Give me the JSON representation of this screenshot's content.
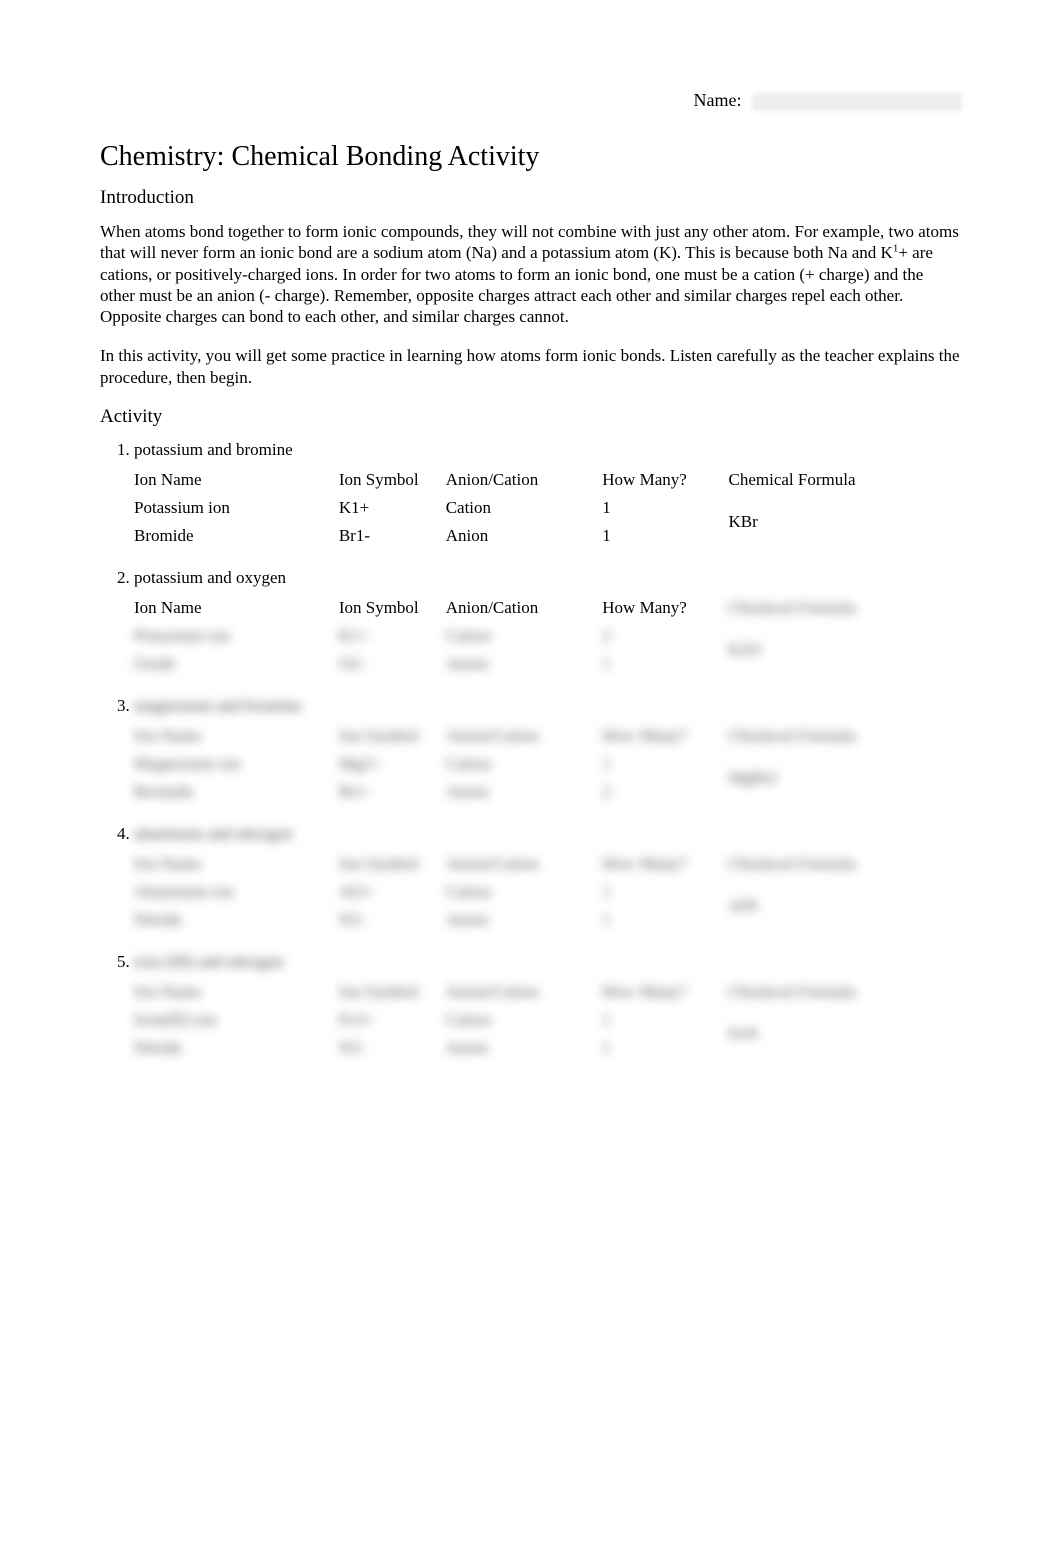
{
  "page": {
    "name_label": "Name:",
    "title": "Chemistry: Chemical Bonding Activity",
    "intro_heading": "Introduction",
    "intro_p1_a": "When atoms bond together to form ionic compounds, they will not combine with just any other atom. For example, two atoms that will never form an ionic bond are a sodium atom (Na) and a potassium atom (K). This is because both Na and K",
    "intro_p1_sup": "1",
    "intro_p1_b": "+ are cations, or positively-charged ions. In order for two atoms to form an ionic bond, one must be a cation (+ charge) and the other must be an anion (- charge). Remember, opposite charges attract each other and similar charges repel each other. Opposite charges can bond to each other, and similar charges cannot.",
    "intro_p2": "In this activity, you will get some practice in learning how atoms form ionic bonds. Listen carefully as the teacher explains the procedure, then begin.",
    "activity_heading": "Activity"
  },
  "headers": {
    "ion_name": "Ion Name",
    "ion_symbol": "Ion Symbol",
    "anion_cation": "Anion/Cation",
    "how_many": "How Many?",
    "chemical_formula": "Chemical Formula"
  },
  "items": [
    {
      "title": "potassium and bromine",
      "title_blurred": false,
      "header_how_many": "How Many?",
      "rows": [
        {
          "name": "Potassium ion",
          "symbol": "K1+",
          "ac": "Cation",
          "hm": "1",
          "blurred": false
        },
        {
          "name": "Bromide",
          "symbol": "Br1-",
          "ac": "Anion",
          "hm": "1",
          "blurred": false
        }
      ],
      "formula": "KBr",
      "formula_blurred": false
    },
    {
      "title": "potassium and oxygen",
      "title_blurred": false,
      "header_how_many": "How Many?",
      "rows": [
        {
          "name": "Potassium ion",
          "symbol": "K1+",
          "ac": "Cation",
          "hm": "2",
          "blurred": true
        },
        {
          "name": "Oxide",
          "symbol": "O2-",
          "ac": "Anion",
          "hm": "1",
          "blurred": true
        }
      ],
      "formula": "K2O",
      "formula_blurred": true,
      "formula_header_blurred": true
    },
    {
      "title": "magnesium and bromine",
      "title_blurred": true,
      "header_how_many": "How Many?",
      "rows": [
        {
          "name": "Magnesium ion",
          "symbol": "Mg2+",
          "ac": "Cation",
          "hm": "1",
          "blurred": true
        },
        {
          "name": "Bromide",
          "symbol": "Br1-",
          "ac": "Anion",
          "hm": "2",
          "blurred": true
        }
      ],
      "formula": "MgBr2",
      "formula_blurred": true,
      "formula_header_blurred": true,
      "all_headers_blurred": true
    },
    {
      "title": "aluminum and nitrogen",
      "title_blurred": true,
      "header_how_many": "How Many?",
      "rows": [
        {
          "name": "Aluminum ion",
          "symbol": "Al3+",
          "ac": "Cation",
          "hm": "1",
          "blurred": true
        },
        {
          "name": "Nitride",
          "symbol": "N3-",
          "ac": "Anion",
          "hm": "1",
          "blurred": true
        }
      ],
      "formula": "AlN",
      "formula_blurred": true,
      "formula_header_blurred": true,
      "all_headers_blurred": true
    },
    {
      "title": "iron (III) and nitrogen",
      "title_blurred": true,
      "header_how_many": "How Many?",
      "rows": [
        {
          "name": "Iron(III) ion",
          "symbol": "Fe3+",
          "ac": "Cation",
          "hm": "1",
          "blurred": true
        },
        {
          "name": "Nitride",
          "symbol": "N3-",
          "ac": "Anion",
          "hm": "1",
          "blurred": true
        }
      ],
      "formula": "FeN",
      "formula_blurred": true,
      "formula_header_blurred": true,
      "all_headers_blurred": true
    }
  ]
}
